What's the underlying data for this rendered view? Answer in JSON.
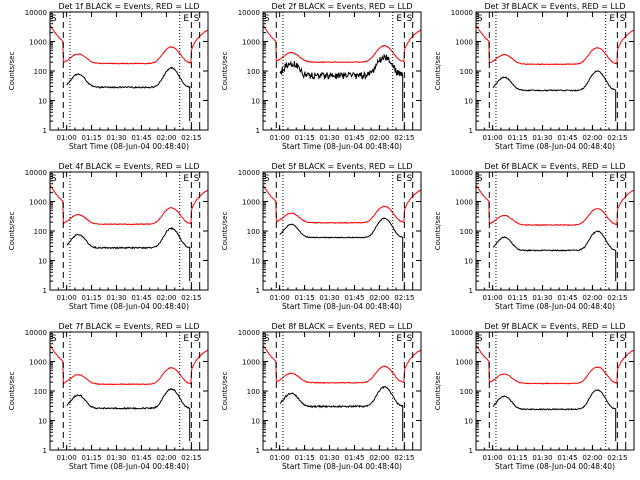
{
  "chart_data": [
    {
      "panel": "1",
      "title": "Det 1f BLACK = Events, RED = LLD",
      "marker_left": "S",
      "marker_right_e": "E",
      "marker_right_s": "S"
    },
    {
      "panel": "2",
      "title": "Det 2f BLACK = Events, RED = LLD",
      "marker_left": "S",
      "marker_right_e": "E",
      "marker_right_s": "S"
    },
    {
      "panel": "3",
      "title": "Det 3f BLACK = Events, RED = LLD",
      "marker_left": "S",
      "marker_right_e": "E",
      "marker_right_s": "S"
    },
    {
      "panel": "4",
      "title": "Det 4f BLACK = Events, RED = LLD",
      "marker_left": "S",
      "marker_right_e": "E",
      "marker_right_s": "S"
    },
    {
      "panel": "5",
      "title": "Det 5f BLACK = Events, RED = LLD",
      "marker_left": "S",
      "marker_right_e": "E",
      "marker_right_s": "S"
    },
    {
      "panel": "6",
      "title": "Det 6f BLACK = Events, RED = LLD",
      "marker_left": "S",
      "marker_right_e": "E",
      "marker_right_s": "S"
    },
    {
      "panel": "7",
      "title": "Det 7f BLACK = Events, RED = LLD",
      "marker_left": "S",
      "marker_right_e": "E",
      "marker_right_s": "S"
    },
    {
      "panel": "8",
      "title": "Det 8f BLACK = Events, RED = LLD",
      "marker_left": "S",
      "marker_right_e": "E",
      "marker_right_s": "S"
    },
    {
      "panel": "9",
      "title": "Det 9f BLACK = Events, RED = LLD",
      "marker_left": "S",
      "marker_right_e": "E",
      "marker_right_s": "S"
    }
  ],
  "common": {
    "type": "line",
    "scale_y": "log",
    "ylabel": "Counts/sec",
    "xlabel": "Start Time (08-Jun-04 00:48:40)",
    "ylim": [
      1,
      10000
    ],
    "y_ticks": [
      "1",
      "10",
      "100",
      "1000"
    ],
    "y_top_tick": "10000",
    "x_ticks": [
      "01:00",
      "01:15",
      "01:30",
      "01:45",
      "02:00",
      "02:15"
    ],
    "x_tick_minutes": [
      60,
      75,
      90,
      105,
      120,
      135
    ],
    "xlim_minutes": [
      50,
      145
    ],
    "series": [
      {
        "name": "Events",
        "color": "#000000"
      },
      {
        "name": "LLD",
        "color": "#ff0000"
      }
    ],
    "saa_exit_minutes": 58,
    "night_start_minutes": 62,
    "night_end_minutes": 128,
    "saa_entry_minutes": 135,
    "saa_entry2_minutes": 140
  }
}
